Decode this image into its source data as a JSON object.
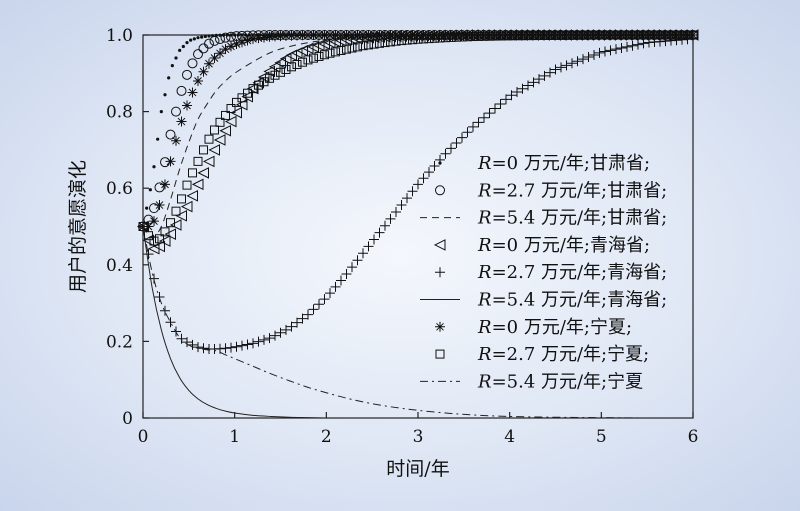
{
  "chart_data": {
    "type": "scatter",
    "xlabel": "时间/年",
    "ylabel": "用户的意愿演化",
    "xlim": [
      0,
      6
    ],
    "ylim": [
      0,
      1.0
    ],
    "x_ticks": [
      "0",
      "1",
      "2",
      "3",
      "4",
      "5",
      "6"
    ],
    "y_ticks": [
      "0",
      "0.2",
      "0.4",
      "0.6",
      "0.8",
      "1.0"
    ],
    "grid": false,
    "legend_position": "right",
    "x": [
      0,
      0.1,
      0.2,
      0.3,
      0.4,
      0.5,
      0.6,
      0.7,
      0.8,
      0.9,
      1.0,
      1.2,
      1.4,
      1.6,
      1.8,
      2.0,
      2.2,
      2.4,
      2.6,
      2.8,
      3.0,
      3.3,
      3.6,
      4.0,
      4.5,
      5.0,
      5.5,
      6.0
    ],
    "series": [
      {
        "label_prefix": "R",
        "label_rest": "=0 万元/年;甘肃省;",
        "marker": "dot",
        "y": [
          0.5,
          0.62,
          0.8,
          0.91,
          0.96,
          0.985,
          0.993,
          0.997,
          0.999,
          1.0,
          1.0,
          1.0,
          1.0,
          1.0,
          1.0,
          1.0,
          1.0,
          1.0,
          1.0,
          1.0,
          1.0,
          1.0,
          1.0,
          1.0,
          1.0,
          1.0,
          1.0,
          1.0
        ]
      },
      {
        "label_prefix": "R",
        "label_rest": "=2.7 万元/年;甘肃省;",
        "marker": "circle",
        "y": [
          0.5,
          0.53,
          0.62,
          0.74,
          0.84,
          0.91,
          0.95,
          0.975,
          0.987,
          0.993,
          0.997,
          0.999,
          1.0,
          1.0,
          1.0,
          1.0,
          1.0,
          1.0,
          1.0,
          1.0,
          1.0,
          1.0,
          1.0,
          1.0,
          1.0,
          1.0,
          1.0,
          1.0
        ]
      },
      {
        "label_prefix": "R",
        "label_rest": "=5.4 万元/年;甘肃省;",
        "marker": "dash",
        "y": [
          0.5,
          0.47,
          0.5,
          0.57,
          0.65,
          0.72,
          0.78,
          0.82,
          0.855,
          0.88,
          0.9,
          0.93,
          0.955,
          0.97,
          0.98,
          0.987,
          0.992,
          0.995,
          0.997,
          0.998,
          0.999,
          1.0,
          1.0,
          1.0,
          1.0,
          1.0,
          1.0,
          1.0
        ]
      },
      {
        "label_prefix": "R",
        "label_rest": "=0 万元/年;青海省;",
        "marker": "triangle-left",
        "y": [
          0.5,
          0.44,
          0.45,
          0.48,
          0.52,
          0.56,
          0.61,
          0.66,
          0.71,
          0.75,
          0.79,
          0.86,
          0.91,
          0.945,
          0.965,
          0.978,
          0.987,
          0.992,
          0.995,
          0.997,
          0.998,
          0.999,
          1.0,
          1.0,
          1.0,
          1.0,
          1.0,
          1.0
        ]
      },
      {
        "label_prefix": "R",
        "label_rest": "=2.7 万元/年;青海省;",
        "marker": "plus",
        "y": [
          0.5,
          0.38,
          0.3,
          0.25,
          0.21,
          0.195,
          0.185,
          0.18,
          0.18,
          0.182,
          0.185,
          0.195,
          0.21,
          0.235,
          0.27,
          0.315,
          0.37,
          0.43,
          0.49,
          0.55,
          0.61,
          0.69,
          0.76,
          0.84,
          0.91,
          0.955,
          0.98,
          0.99
        ]
      },
      {
        "label_prefix": "R",
        "label_rest": "=5.4 万元/年;青海省;",
        "marker": "solid",
        "y": [
          0.5,
          0.34,
          0.23,
          0.155,
          0.105,
          0.072,
          0.05,
          0.035,
          0.025,
          0.018,
          0.013,
          0.007,
          0.004,
          0.002,
          0.001,
          0.0,
          0.0,
          0.0,
          0.0,
          0.0,
          0.0,
          0.0,
          0.0,
          0.0,
          0.0,
          0.0,
          0.0,
          0.0
        ]
      },
      {
        "label_prefix": "R",
        "label_rest": "=0 万元/年;宁夏;",
        "marker": "asterisk",
        "y": [
          0.5,
          0.5,
          0.57,
          0.67,
          0.76,
          0.83,
          0.88,
          0.92,
          0.945,
          0.963,
          0.975,
          0.99,
          0.996,
          0.998,
          1.0,
          1.0,
          1.0,
          1.0,
          1.0,
          1.0,
          1.0,
          1.0,
          1.0,
          1.0,
          1.0,
          1.0,
          1.0,
          1.0
        ]
      },
      {
        "label_prefix": "R",
        "label_rest": "=2.7 万元/年;宁夏;",
        "marker": "square",
        "y": [
          0.5,
          0.46,
          0.47,
          0.51,
          0.56,
          0.62,
          0.67,
          0.72,
          0.76,
          0.79,
          0.82,
          0.86,
          0.89,
          0.915,
          0.935,
          0.95,
          0.962,
          0.972,
          0.979,
          0.985,
          0.989,
          0.993,
          0.996,
          0.998,
          0.999,
          1.0,
          1.0,
          1.0
        ]
      },
      {
        "label_prefix": "R",
        "label_rest": "=5.4 万元/年;宁夏",
        "marker": "dashdot",
        "y": [
          0.5,
          0.38,
          0.3,
          0.25,
          0.21,
          0.19,
          0.182,
          0.178,
          0.175,
          0.165,
          0.155,
          0.135,
          0.115,
          0.097,
          0.08,
          0.066,
          0.053,
          0.042,
          0.033,
          0.026,
          0.02,
          0.013,
          0.008,
          0.004,
          0.002,
          0.001,
          0.0,
          0.0
        ]
      }
    ]
  }
}
